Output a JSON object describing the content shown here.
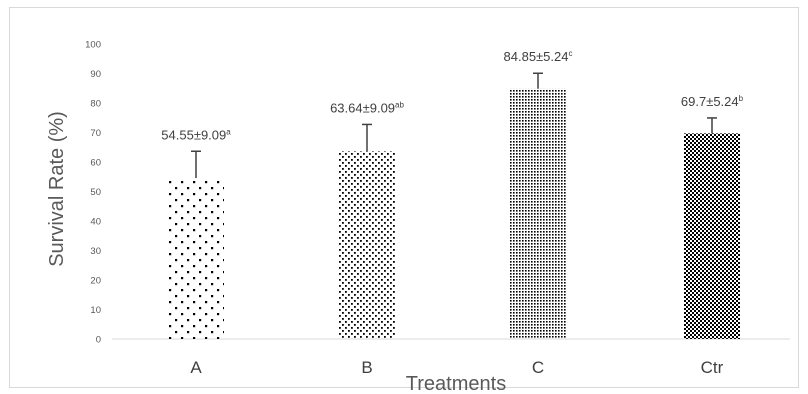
{
  "chart_data": {
    "type": "bar",
    "categories": [
      "A",
      "B",
      "C",
      "Ctr"
    ],
    "values": [
      54.55,
      63.64,
      84.85,
      69.7
    ],
    "errors": [
      9.09,
      9.09,
      5.24,
      5.24
    ],
    "labels": [
      {
        "text": "54.55±9.09",
        "sup": "a"
      },
      {
        "text": "63.64±9.09",
        "sup": "ab"
      },
      {
        "text": "84.85±5.24",
        "sup": "c"
      },
      {
        "text": "69.7±5.24",
        "sup": "b"
      }
    ],
    "xlabel": "Treatments",
    "ylabel": "Survival Rate (%)",
    "ylim": [
      0,
      100
    ],
    "yticks": [
      0,
      10,
      20,
      30,
      40,
      50,
      60,
      70,
      80,
      90,
      100
    ],
    "patterns": [
      "sparse-dots",
      "medium-dots",
      "dense-dots",
      "checker"
    ],
    "colors": {
      "fill": "#000000",
      "error_bar": "#404040",
      "axis": "#d9d9d9"
    }
  }
}
